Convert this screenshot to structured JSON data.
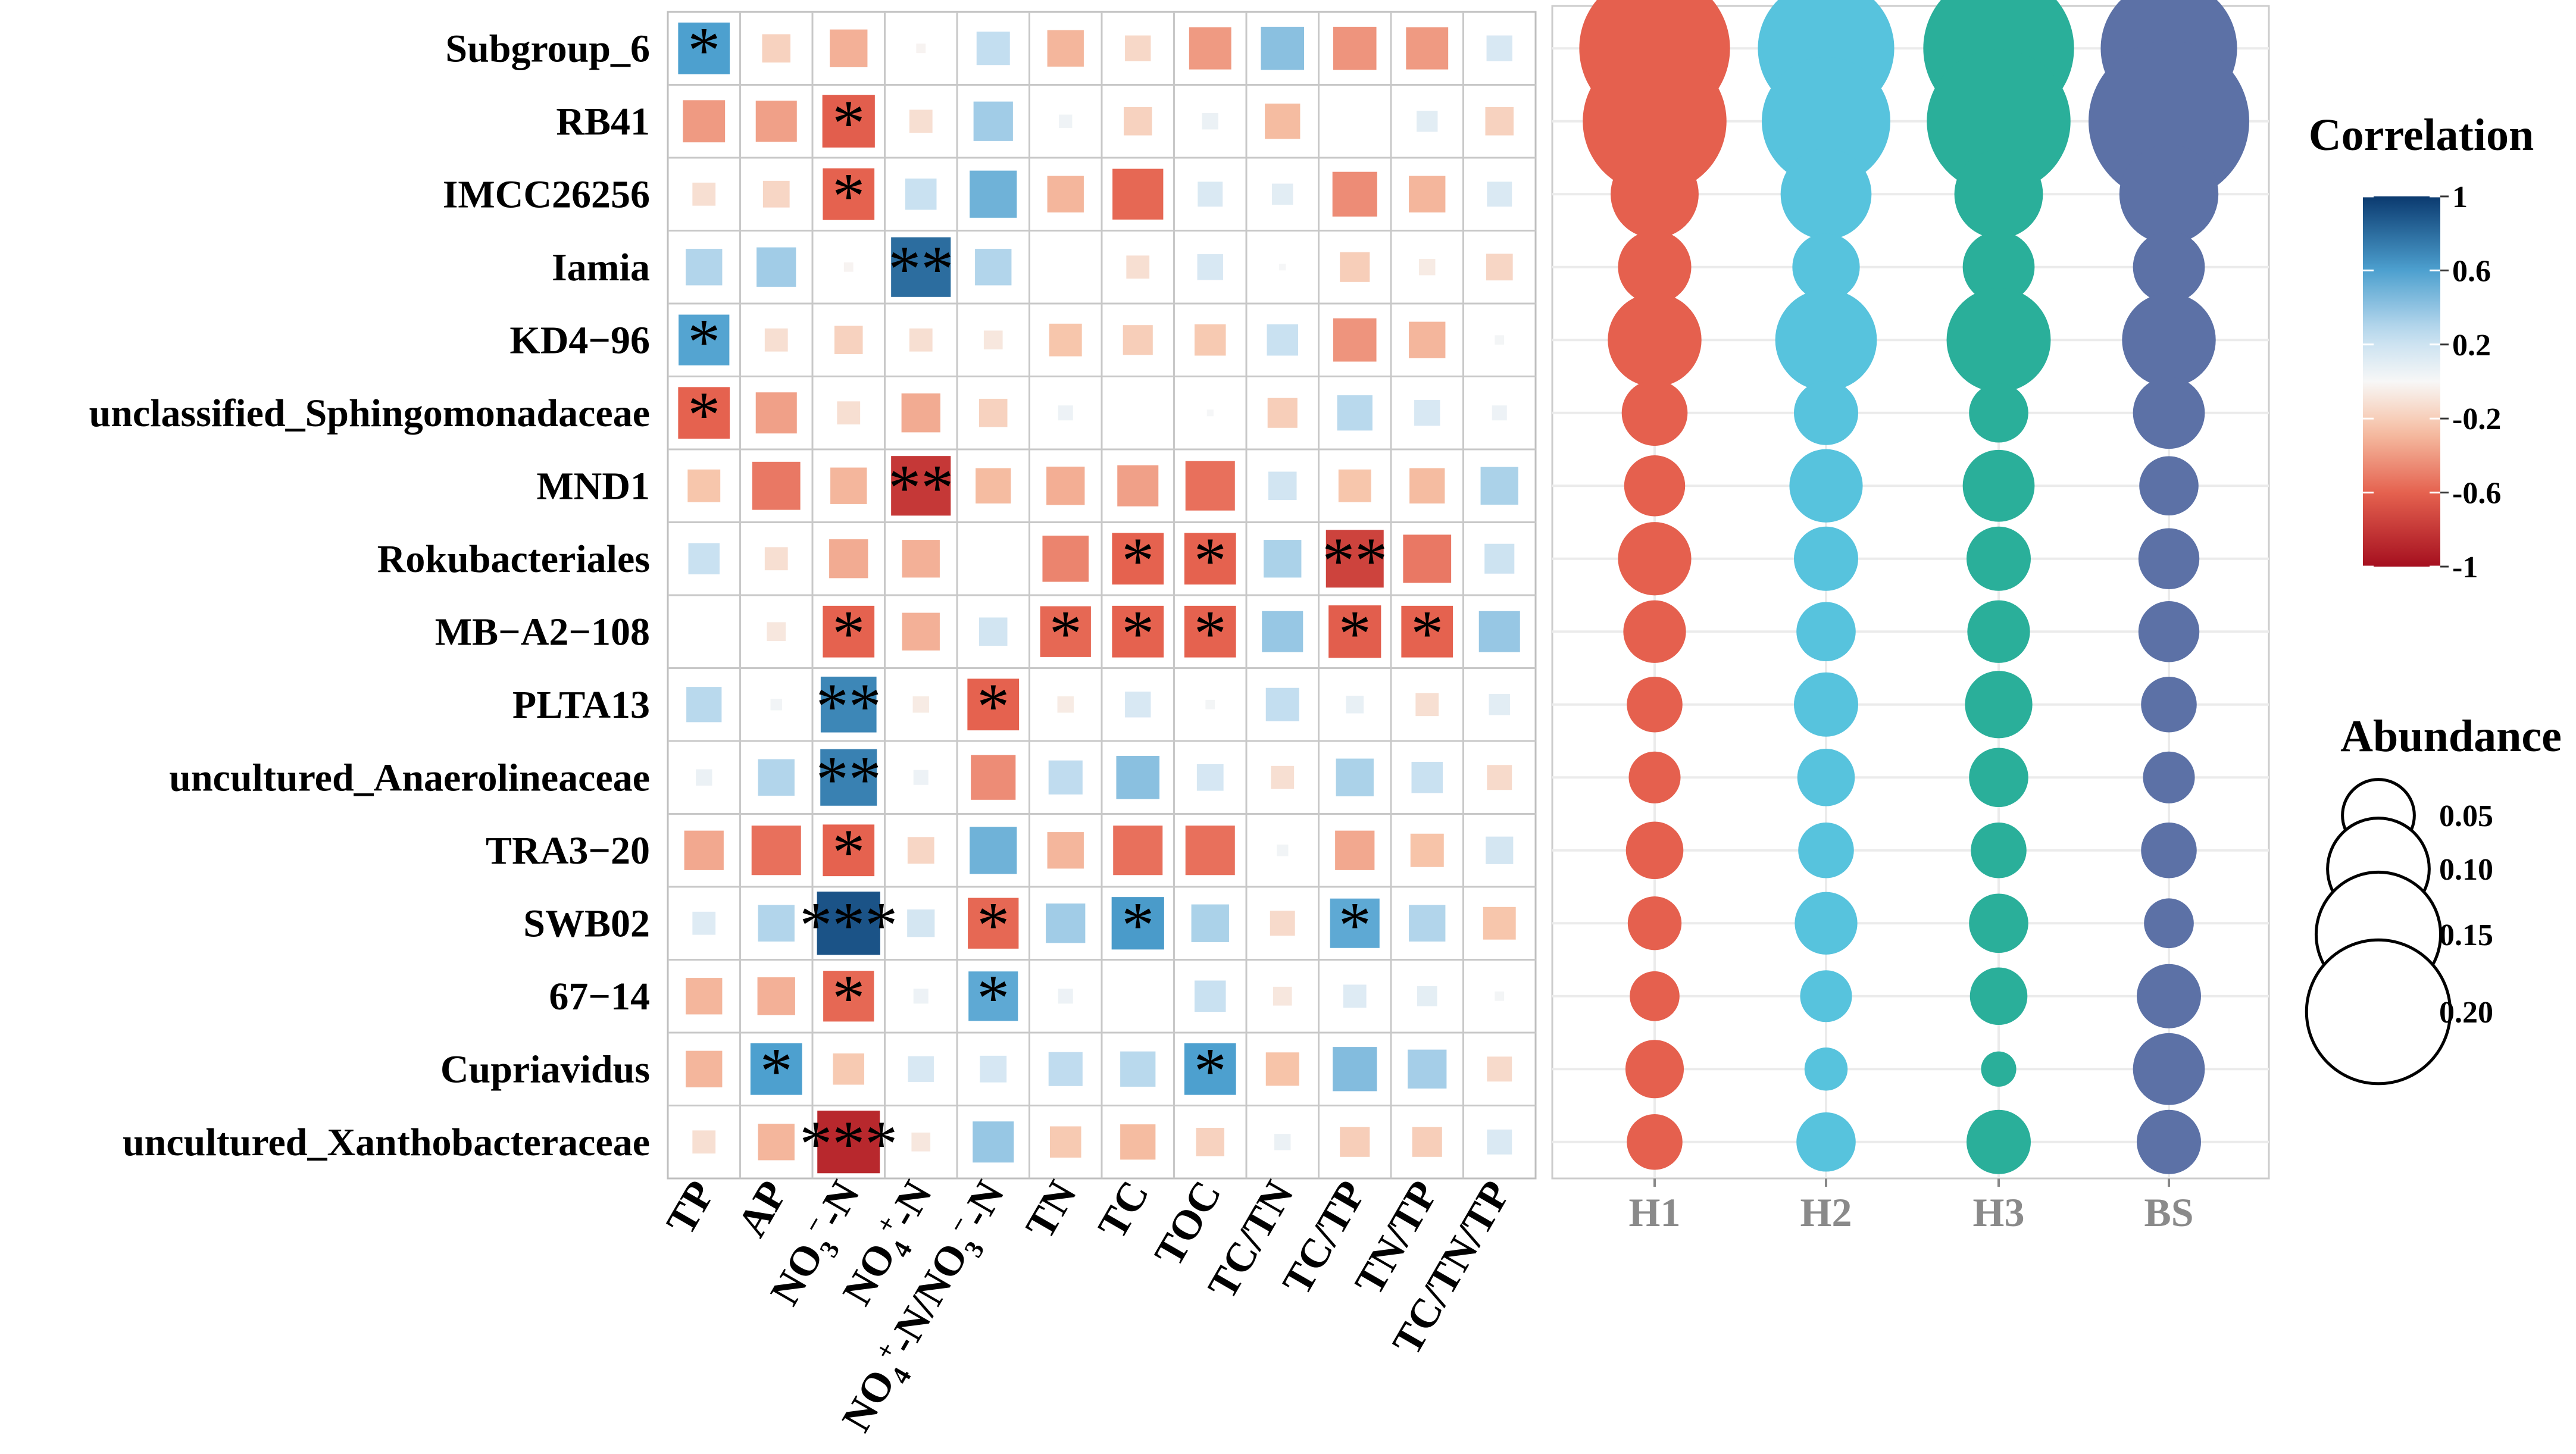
{
  "chart_data": [
    {
      "type": "heatmap",
      "title": "",
      "rows": [
        "Subgroup_6",
        "RB41",
        "IMCC26256",
        "Iamia",
        "KD4−96",
        "unclassified_Sphingomonadaceae",
        "MND1",
        "Rokubacteriales",
        "MB−A2−108",
        "PLTA13",
        "uncultured_Anaerolineaceae",
        "TRA3−20",
        "SWB02",
        "67−14",
        "Cupriavidus",
        "uncultured_Xanthobacteraceae"
      ],
      "columns": [
        "TP",
        "AP",
        "NO3−-N",
        "NO4+-N",
        "NO4+-N/NO3−-N",
        "TN",
        "TC",
        "TOC",
        "TC/TN",
        "TC/TP",
        "TN/TP",
        "TC/TN/TP"
      ],
      "column_label_parts": [
        [
          [
            "TP",
            ""
          ]
        ],
        [
          [
            "AP",
            ""
          ]
        ],
        [
          [
            "NO",
            "n"
          ],
          [
            "3",
            "sub"
          ],
          [
            "−",
            "sup"
          ],
          [
            "-N",
            "n"
          ]
        ],
        [
          [
            "NO",
            "n"
          ],
          [
            "4",
            "sub"
          ],
          [
            "+",
            "sup"
          ],
          [
            "-N",
            "n"
          ]
        ],
        [
          [
            "NO",
            "n"
          ],
          [
            "4",
            "sub"
          ],
          [
            "+",
            "sup"
          ],
          [
            "-N/NO",
            "n"
          ],
          [
            "3",
            "sub"
          ],
          [
            "−",
            "sup"
          ],
          [
            "-N",
            "n"
          ]
        ],
        [
          [
            "TN",
            ""
          ]
        ],
        [
          [
            "TC",
            ""
          ]
        ],
        [
          [
            "TOC",
            ""
          ]
        ],
        [
          [
            "TC/TN",
            ""
          ]
        ],
        [
          [
            "TC/TP",
            ""
          ]
        ],
        [
          [
            "TN/TP",
            ""
          ]
        ],
        [
          [
            "TC/TN/TP",
            ""
          ]
        ]
      ],
      "values": [
        [
          0.6,
          -0.18,
          -0.32,
          -0.02,
          0.25,
          -0.3,
          -0.15,
          -0.4,
          0.42,
          -0.42,
          -0.4,
          0.15
        ],
        [
          -0.4,
          -0.38,
          -0.62,
          -0.12,
          0.35,
          0.04,
          -0.18,
          0.06,
          -0.28,
          0.0,
          0.1,
          -0.18
        ],
        [
          -0.12,
          -0.16,
          -0.6,
          0.22,
          0.5,
          -0.3,
          -0.58,
          0.14,
          0.1,
          -0.45,
          -0.3,
          0.14
        ],
        [
          0.3,
          0.35,
          -0.02,
          0.8,
          0.3,
          0.0,
          -0.12,
          0.15,
          0.01,
          -0.2,
          -0.06,
          -0.16
        ],
        [
          0.58,
          -0.12,
          -0.18,
          -0.12,
          -0.08,
          -0.24,
          -0.2,
          -0.22,
          0.22,
          -0.42,
          -0.3,
          0.02
        ],
        [
          -0.6,
          -0.38,
          -0.12,
          -0.34,
          -0.18,
          0.05,
          0.0,
          0.01,
          -0.2,
          0.28,
          0.15,
          0.05
        ],
        [
          -0.24,
          -0.52,
          -0.3,
          -0.8,
          -0.28,
          -0.33,
          -0.38,
          -0.55,
          0.18,
          -0.24,
          -0.28,
          0.32
        ],
        [
          0.22,
          -0.12,
          -0.34,
          -0.32,
          0.0,
          -0.48,
          -0.6,
          -0.6,
          0.32,
          -0.75,
          -0.52,
          0.2
        ],
        [
          0.0,
          -0.08,
          -0.6,
          -0.32,
          0.18,
          -0.58,
          -0.6,
          -0.6,
          0.38,
          -0.62,
          -0.6,
          0.38
        ],
        [
          0.28,
          0.03,
          0.7,
          -0.06,
          -0.6,
          -0.06,
          0.15,
          0.02,
          0.25,
          0.07,
          -0.12,
          0.1
        ],
        [
          0.06,
          0.3,
          0.72,
          0.05,
          -0.45,
          0.26,
          0.42,
          0.16,
          -0.12,
          0.32,
          0.22,
          -0.14
        ],
        [
          -0.35,
          -0.55,
          -0.6,
          -0.16,
          0.5,
          -0.3,
          -0.55,
          -0.55,
          0.03,
          -0.35,
          -0.25,
          0.17
        ],
        [
          0.12,
          0.3,
          0.9,
          0.17,
          -0.58,
          0.35,
          0.62,
          0.32,
          -0.14,
          0.55,
          0.3,
          -0.24
        ],
        [
          -0.3,
          -0.32,
          -0.58,
          0.05,
          0.55,
          0.05,
          0.0,
          0.22,
          -0.08,
          0.12,
          0.09,
          0.02
        ],
        [
          -0.3,
          0.6,
          -0.22,
          0.15,
          0.16,
          0.26,
          0.28,
          0.6,
          -0.25,
          0.44,
          0.34,
          -0.14
        ],
        [
          -0.12,
          -0.3,
          -0.88,
          -0.08,
          0.38,
          -0.22,
          -0.28,
          -0.18,
          0.06,
          -0.2,
          -0.2,
          0.14
        ]
      ],
      "significance": [
        [
          "*",
          "",
          "",
          "",
          "",
          "",
          "",
          "",
          "",
          "",
          "",
          ""
        ],
        [
          "",
          "",
          "*",
          "",
          "",
          "",
          "",
          "",
          "",
          "",
          "",
          ""
        ],
        [
          "",
          "",
          "*",
          "",
          "",
          "",
          "",
          "",
          "",
          "",
          "",
          ""
        ],
        [
          "",
          "",
          "",
          "**",
          "",
          "",
          "",
          "",
          "",
          "",
          "",
          ""
        ],
        [
          "*",
          "",
          "",
          "",
          "",
          "",
          "",
          "",
          "",
          "",
          "",
          ""
        ],
        [
          "*",
          "",
          "",
          "",
          "",
          "",
          "",
          "",
          "",
          "",
          "",
          ""
        ],
        [
          "",
          "",
          "",
          "**",
          "",
          "",
          "",
          "",
          "",
          "",
          "",
          ""
        ],
        [
          "",
          "",
          "",
          "",
          "",
          "",
          "*",
          "*",
          "",
          "**",
          "",
          ""
        ],
        [
          "",
          "",
          "*",
          "",
          "",
          "*",
          "*",
          "*",
          "",
          "*",
          "*",
          ""
        ],
        [
          "",
          "",
          "**",
          "",
          "*",
          "",
          "",
          "",
          "",
          "",
          "",
          ""
        ],
        [
          "",
          "",
          "**",
          "",
          "",
          "",
          "",
          "",
          "",
          "",
          "",
          ""
        ],
        [
          "",
          "",
          "*",
          "",
          "",
          "",
          "",
          "",
          "",
          "",
          "",
          ""
        ],
        [
          "",
          "",
          "***",
          "",
          "*",
          "",
          "*",
          "",
          "",
          "*",
          "",
          ""
        ],
        [
          "",
          "",
          "*",
          "",
          "*",
          "",
          "",
          "",
          "",
          "",
          "",
          ""
        ],
        [
          "",
          "*",
          "",
          "",
          "",
          "",
          "",
          "*",
          "",
          "",
          "",
          ""
        ],
        [
          "",
          "",
          "***",
          "",
          "",
          "",
          "",
          "",
          "",
          "",
          "",
          ""
        ]
      ],
      "colorbar": {
        "title": "Correlation",
        "ticks": [
          "1",
          "0.6",
          "0.2",
          "-0.2",
          "-0.6",
          "-1"
        ],
        "tick_values": [
          1,
          0.6,
          0.2,
          -0.2,
          -0.6,
          -1
        ],
        "range": [
          -1,
          1
        ],
        "colors": {
          "neg_strong": "#a50f1f",
          "neg_mid": "#e5624f",
          "neg_light": "#f7c4a9",
          "zero": "#f7f7f7",
          "pos_light": "#c3def0",
          "pos_mid": "#4da0cf",
          "pos_strong": "#0b3a6f"
        }
      }
    },
    {
      "type": "scatter",
      "subtype": "bubble",
      "title": "",
      "x_categories": [
        "H1",
        "H2",
        "H3",
        "BS"
      ],
      "y_categories": [
        "Subgroup_6",
        "RB41",
        "IMCC26256",
        "Iamia",
        "KD4−96",
        "unclassified_Sphingomonadaceae",
        "MND1",
        "Rokubacteriales",
        "MB−A2−108",
        "PLTA13",
        "uncultured_Anaerolineaceae",
        "TRA3−20",
        "SWB02",
        "67−14",
        "Cupriavidus",
        "uncultured_Xanthobacteraceae"
      ],
      "series": [
        {
          "name": "H1",
          "color": "#e5604e",
          "values": [
            0.22,
            0.2,
            0.075,
            0.052,
            0.085,
            0.042,
            0.036,
            0.052,
            0.038,
            0.03,
            0.026,
            0.032,
            0.028,
            0.024,
            0.033,
            0.03
          ]
        },
        {
          "name": "H2",
          "color": "#57c3dd",
          "values": [
            0.18,
            0.16,
            0.08,
            0.044,
            0.1,
            0.04,
            0.052,
            0.04,
            0.034,
            0.04,
            0.032,
            0.03,
            0.038,
            0.026,
            0.018,
            0.034
          ]
        },
        {
          "name": "H3",
          "color": "#2aaf9a",
          "values": [
            0.22,
            0.2,
            0.076,
            0.05,
            0.105,
            0.034,
            0.05,
            0.04,
            0.038,
            0.044,
            0.034,
            0.03,
            0.034,
            0.032,
            0.012,
            0.04
          ]
        },
        {
          "name": "BS",
          "color": "#5c71a6",
          "values": [
            0.18,
            0.25,
            0.095,
            0.05,
            0.085,
            0.05,
            0.034,
            0.036,
            0.036,
            0.03,
            0.026,
            0.03,
            0.024,
            0.04,
            0.05,
            0.04
          ]
        }
      ],
      "legend": {
        "title": "Abundance",
        "sizes": [
          0.05,
          0.1,
          0.15,
          0.2
        ],
        "labels": [
          "0.05",
          "0.10",
          "0.15",
          "0.20"
        ]
      }
    }
  ]
}
